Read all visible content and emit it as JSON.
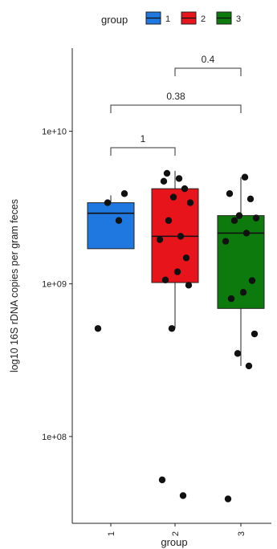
{
  "chart_data": {
    "type": "box",
    "legend": {
      "title": "group",
      "position": "top",
      "entries": [
        {
          "label": "1",
          "color": "#1f77e0"
        },
        {
          "label": "2",
          "color": "#e8141c"
        },
        {
          "label": "3",
          "color": "#0d7a0d"
        }
      ]
    },
    "xlabel": "group",
    "ylabel": "log10 16S rDNA copies per gram feces",
    "scale": "log10",
    "ylim": [
      27000000,
      35000000000
    ],
    "yticks": [
      {
        "value": 100000000,
        "label": "1e+08"
      },
      {
        "value": 1000000000,
        "label": "1e+09"
      },
      {
        "value": 10000000000,
        "label": "1e+10"
      }
    ],
    "categories": [
      "1",
      "2",
      "3"
    ],
    "boxes": [
      {
        "group": "1",
        "color": "#1f77e0",
        "whisker_low": 1700000000,
        "q1": 1700000000,
        "median": 2900000000,
        "q3": 3400000000,
        "whisker_high": 3800000000,
        "points": [
          510000000,
          2600000000,
          3400000000,
          3900000000
        ]
      },
      {
        "group": "2",
        "color": "#e8141c",
        "whisker_low": 510000000,
        "q1": 1020000000,
        "median": 2050000000,
        "q3": 4200000000,
        "whisker_high": 5500000000,
        "points": [
          52000000,
          41000000,
          510000000,
          980000000,
          1060000000,
          1200000000,
          1480000000,
          1950000000,
          2050000000,
          2600000000,
          3400000000,
          3700000000,
          4200000000,
          4700000000,
          4900000000,
          5300000000
        ]
      },
      {
        "group": "3",
        "color": "#0d7a0d",
        "whisker_low": 290000000,
        "q1": 690000000,
        "median": 2150000000,
        "q3": 2800000000,
        "whisker_high": 5000000000,
        "points": [
          39000000,
          290000000,
          350000000,
          470000000,
          800000000,
          880000000,
          1050000000,
          1900000000,
          2150000000,
          2600000000,
          2700000000,
          2800000000,
          3600000000,
          3900000000,
          5000000000
        ]
      }
    ],
    "comparisons": [
      {
        "groups": [
          "1",
          "2"
        ],
        "label": "1"
      },
      {
        "groups": [
          "1",
          "3"
        ],
        "label": "0.38"
      },
      {
        "groups": [
          "2",
          "3"
        ],
        "label": "0.4"
      }
    ]
  }
}
